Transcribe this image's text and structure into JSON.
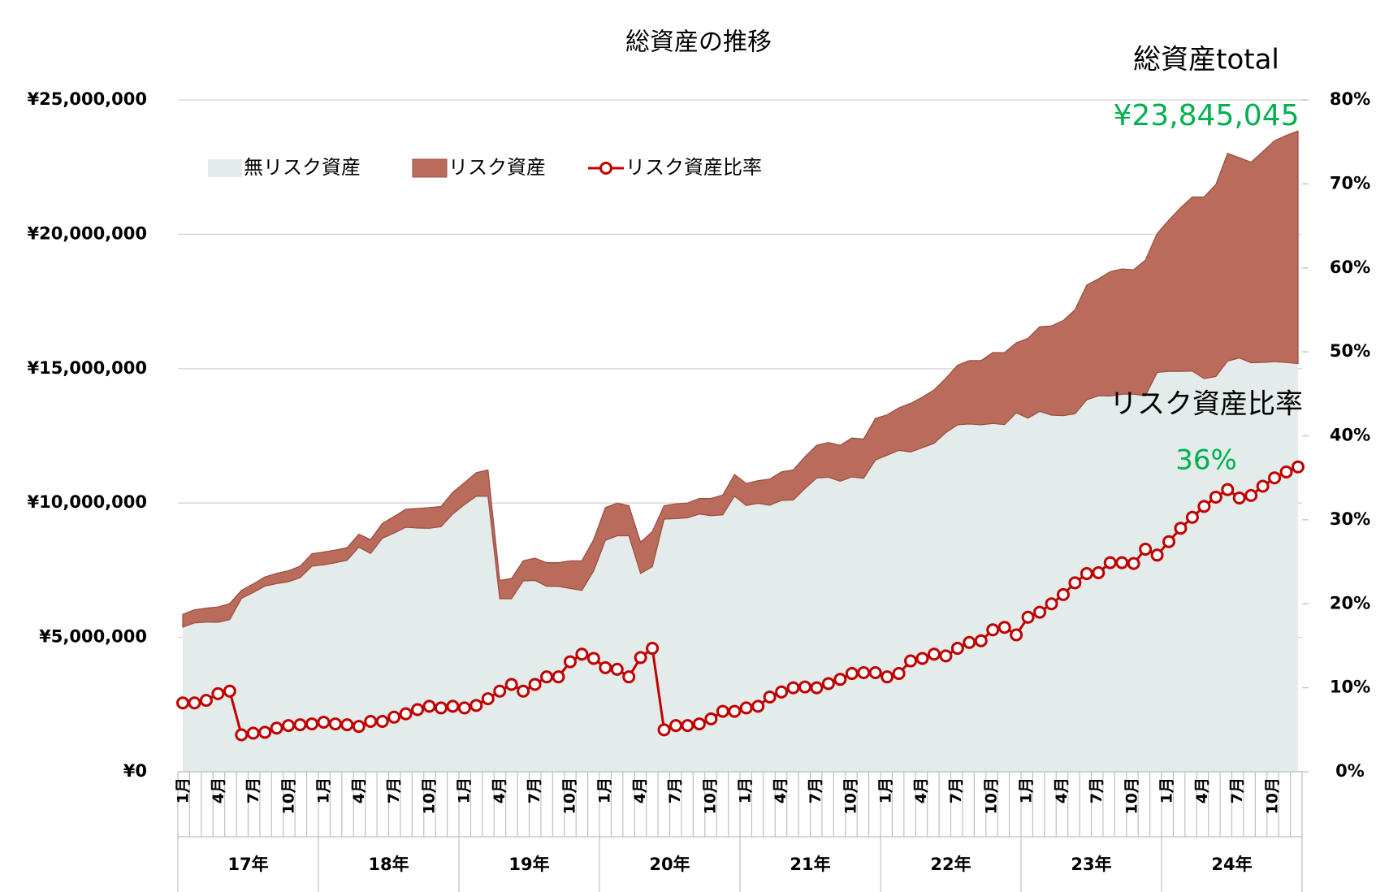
{
  "chart_data": {
    "type": "stacked_area_line",
    "title": "総資産の推移",
    "annotations": [
      "総資産total",
      "¥23,845,045",
      "リスク資産比率",
      "36%"
    ],
    "categories": [
      "1月",
      null,
      null,
      "4月",
      null,
      null,
      "7月",
      null,
      null,
      "10月",
      null,
      null,
      "1月",
      null,
      null,
      "4月",
      null,
      null,
      "7月",
      null,
      null,
      "10月",
      null,
      null,
      "1月",
      null,
      null,
      "4月",
      null,
      null,
      "7月",
      null,
      null,
      "10月",
      null,
      null,
      "1月",
      null,
      null,
      "4月",
      null,
      null,
      "7月",
      null,
      null,
      "10月",
      null,
      null,
      "1月",
      null,
      null,
      "4月",
      null,
      null,
      "7月",
      null,
      null,
      "10月",
      null,
      null,
      "1月",
      null,
      null,
      "4月",
      null,
      null,
      "7月",
      null,
      null,
      "10月",
      null,
      null,
      "1月",
      null,
      null,
      "4月",
      null,
      null,
      "7月",
      null,
      null,
      "10月",
      null,
      null,
      "1月",
      null,
      null,
      "4月",
      null,
      null,
      "7月",
      null,
      null,
      "10月",
      null,
      null
    ],
    "x_groups": [
      "17年",
      "18年",
      "19年",
      "20年",
      "21年",
      "22年",
      "23年",
      "24年"
    ],
    "series": [
      {
        "name": "無リスク資産",
        "color": "#e3ecea",
        "values": [
          5380000,
          5540000,
          5570000,
          5560000,
          5660000,
          6450000,
          6670000,
          6910000,
          7000000,
          7070000,
          7220000,
          7650000,
          7700000,
          7780000,
          7870000,
          8360000,
          8120000,
          8690000,
          8880000,
          9100000,
          9070000,
          9060000,
          9120000,
          9590000,
          9940000,
          10250000,
          10250000,
          6440000,
          6440000,
          7100000,
          7120000,
          6900000,
          6900000,
          6820000,
          6750000,
          7470000,
          8610000,
          8780000,
          8780000,
          7380000,
          7630000,
          9400000,
          9420000,
          9450000,
          9590000,
          9530000,
          9560000,
          10260000,
          9910000,
          9990000,
          9920000,
          10100000,
          10110000,
          10540000,
          10930000,
          10960000,
          10810000,
          10970000,
          10920000,
          11600000,
          11780000,
          11960000,
          11900000,
          12060000,
          12220000,
          12620000,
          12910000,
          12940000,
          12910000,
          12960000,
          12920000,
          13360000,
          13160000,
          13410000,
          13270000,
          13250000,
          13320000,
          13840000,
          13990000,
          13980000,
          14050000,
          14050000,
          13990000,
          14860000,
          14900000,
          14900000,
          14910000,
          14630000,
          14710000,
          15280000,
          15400000,
          15220000,
          15230000,
          15260000,
          15230000,
          15189000
        ]
      },
      {
        "name": "リスク資産",
        "color": "#b96b5c",
        "values": [
          480000,
          490000,
          520000,
          570000,
          600000,
          300000,
          320000,
          340000,
          380000,
          410000,
          430000,
          460000,
          480000,
          470000,
          470000,
          480000,
          520000,
          550000,
          620000,
          670000,
          730000,
          770000,
          750000,
          810000,
          820000,
          880000,
          980000,
          680000,
          750000,
          750000,
          830000,
          880000,
          880000,
          1030000,
          1100000,
          1170000,
          1220000,
          1220000,
          1120000,
          1160000,
          1310000,
          500000,
          550000,
          550000,
          580000,
          640000,
          740000,
          800000,
          820000,
          840000,
          970000,
          1060000,
          1120000,
          1180000,
          1220000,
          1290000,
          1340000,
          1450000,
          1460000,
          1550000,
          1500000,
          1580000,
          1810000,
          1880000,
          1990000,
          2020000,
          2220000,
          2360000,
          2390000,
          2640000,
          2680000,
          2600000,
          2970000,
          3150000,
          3320000,
          3540000,
          3870000,
          4270000,
          4350000,
          4630000,
          4660000,
          4630000,
          5050000,
          5170000,
          5630000,
          6090000,
          6480000,
          6760000,
          7140000,
          7730000,
          7450000,
          7460000,
          7850000,
          8220000,
          8450000,
          8656045
        ]
      },
      {
        "name": "リスク資産比率",
        "color": "#c00000",
        "axis": "y2",
        "values": [
          8.2,
          8.2,
          8.5,
          9.3,
          9.6,
          4.4,
          4.6,
          4.7,
          5.2,
          5.5,
          5.6,
          5.7,
          5.9,
          5.7,
          5.6,
          5.4,
          6.0,
          6.0,
          6.5,
          6.9,
          7.4,
          7.8,
          7.6,
          7.8,
          7.6,
          7.9,
          8.7,
          9.6,
          10.4,
          9.6,
          10.4,
          11.3,
          11.3,
          13.1,
          14.0,
          13.5,
          12.4,
          12.2,
          11.3,
          13.6,
          14.7,
          5.0,
          5.5,
          5.5,
          5.7,
          6.3,
          7.2,
          7.2,
          7.6,
          7.8,
          8.9,
          9.5,
          10.0,
          10.1,
          10.0,
          10.5,
          11.0,
          11.7,
          11.8,
          11.8,
          11.3,
          11.7,
          13.2,
          13.5,
          14.0,
          13.8,
          14.7,
          15.4,
          15.6,
          16.9,
          17.2,
          16.3,
          18.4,
          19.0,
          20.0,
          21.1,
          22.5,
          23.6,
          23.7,
          24.9,
          24.9,
          24.8,
          26.5,
          25.8,
          27.4,
          29.0,
          30.3,
          31.6,
          32.7,
          33.6,
          32.6,
          32.9,
          34.0,
          35.0,
          35.7,
          36.3
        ]
      }
    ],
    "ylim": [
      0,
      25000000
    ],
    "yticks": [
      {
        "value": 0,
        "label": "¥0"
      },
      {
        "value": 5000000,
        "label": "¥5,000,000"
      },
      {
        "value": 10000000,
        "label": "¥10,000,000"
      },
      {
        "value": 15000000,
        "label": "¥15,000,000"
      },
      {
        "value": 20000000,
        "label": "¥20,000,000"
      },
      {
        "value": 25000000,
        "label": "¥25,000,000"
      }
    ],
    "y2lim": [
      0,
      80
    ],
    "y2ticks": [
      {
        "value": 0,
        "label": "0%"
      },
      {
        "value": 10,
        "label": "10%"
      },
      {
        "value": 20,
        "label": "20%"
      },
      {
        "value": 30,
        "label": "30%"
      },
      {
        "value": 40,
        "label": "40%"
      },
      {
        "value": 50,
        "label": "50%"
      },
      {
        "value": 60,
        "label": "60%"
      },
      {
        "value": 70,
        "label": "70%"
      },
      {
        "value": 80,
        "label": "80%"
      }
    ],
    "grid": true,
    "legend": "upper left",
    "annotation_color": "#00b050"
  }
}
